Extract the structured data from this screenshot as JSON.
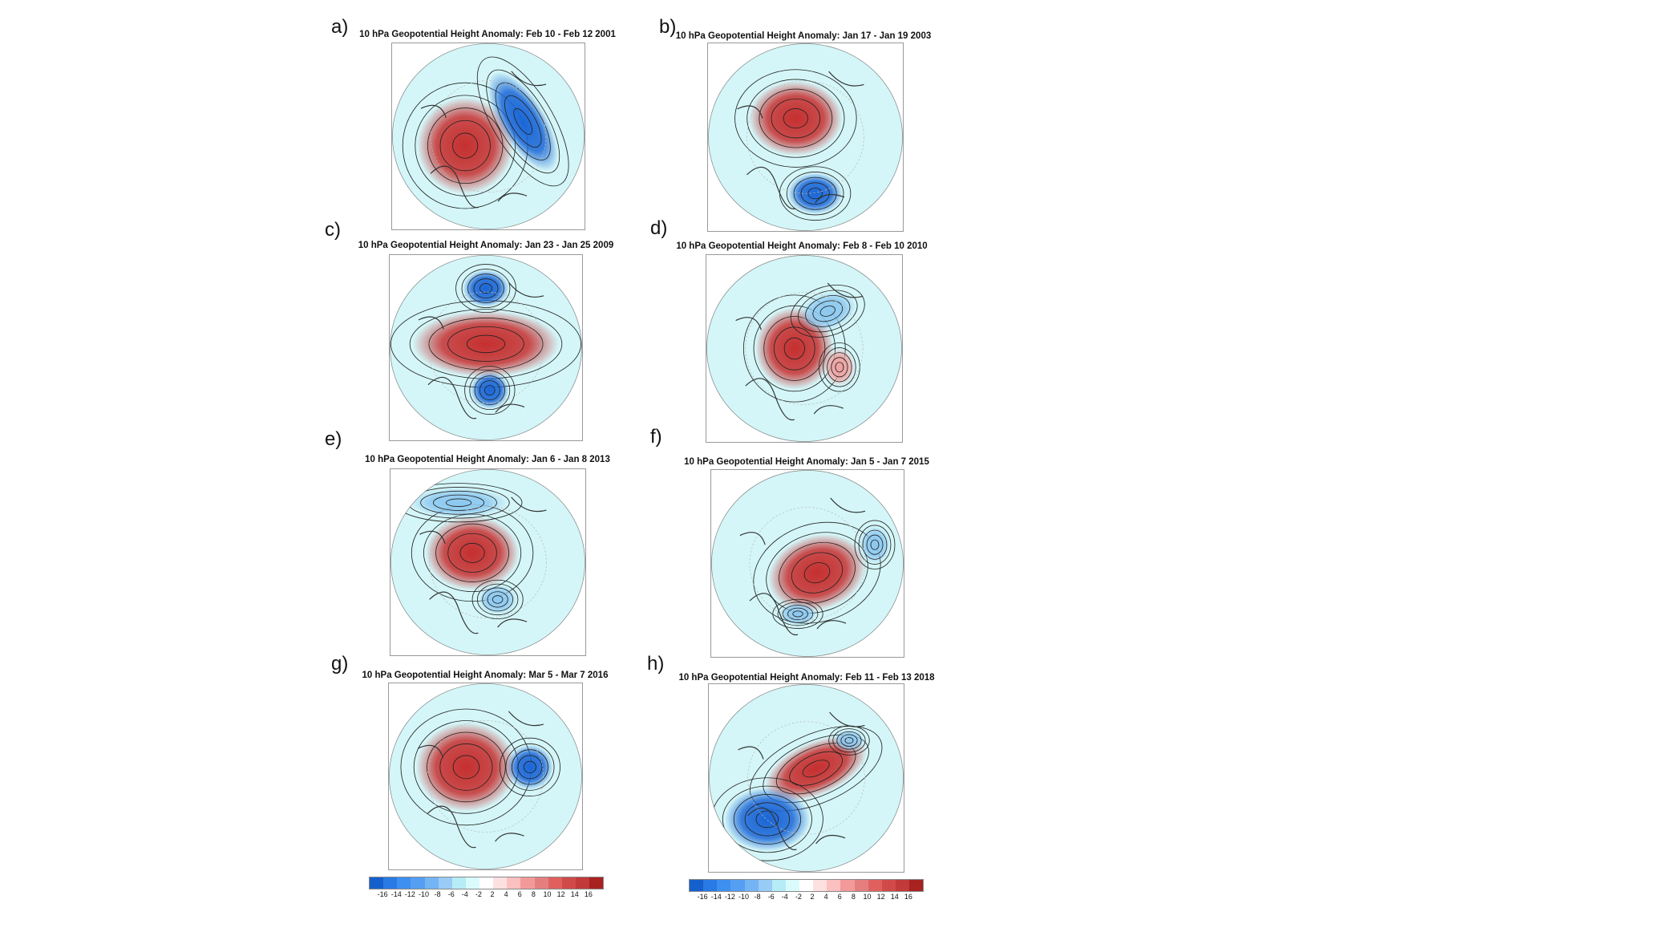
{
  "panels": [
    {
      "label": "a)",
      "title": "10 hPa Geopotential Height Anomaly: Feb 10 - Feb 12 2001"
    },
    {
      "label": "b)",
      "title": "10 hPa Geopotential Height Anomaly: Jan 17 - Jan 19 2003"
    },
    {
      "label": "c)",
      "title": "10 hPa Geopotential Height Anomaly: Jan 23 - Jan 25 2009"
    },
    {
      "label": "d)",
      "title": "10 hPa Geopotential Height Anomaly: Feb 8 - Feb 10 2010"
    },
    {
      "label": "e)",
      "title": "10 hPa Geopotential Height Anomaly: Jan 6 - Jan 8 2013"
    },
    {
      "label": "f)",
      "title": "10 hPa Geopotential Height Anomaly: Jan 5 - Jan 7 2015"
    },
    {
      "label": "g)",
      "title": "10 hPa Geopotential Height Anomaly: Mar 5 - Mar 7 2016"
    },
    {
      "label": "h)",
      "title": "10 hPa Geopotential Height Anomaly: Feb 11 - Feb 13 2018"
    }
  ],
  "colorbar": {
    "ticks": [
      "-16",
      "-14",
      "-12",
      "-10",
      "-8",
      "-6",
      "-4",
      "-2",
      "2",
      "4",
      "6",
      "8",
      "10",
      "12",
      "14",
      "16"
    ],
    "colors": [
      "#1560cc",
      "#2a7ae6",
      "#3d8ff0",
      "#559ff2",
      "#74b4f4",
      "#98cbf6",
      "#b5ecf5",
      "#dafbfb",
      "#ffffff",
      "#fde0e0",
      "#fbc0c0",
      "#f29a9a",
      "#e57f7f",
      "#e06060",
      "#d14a4a",
      "#c23a3a",
      "#a92222"
    ]
  }
}
